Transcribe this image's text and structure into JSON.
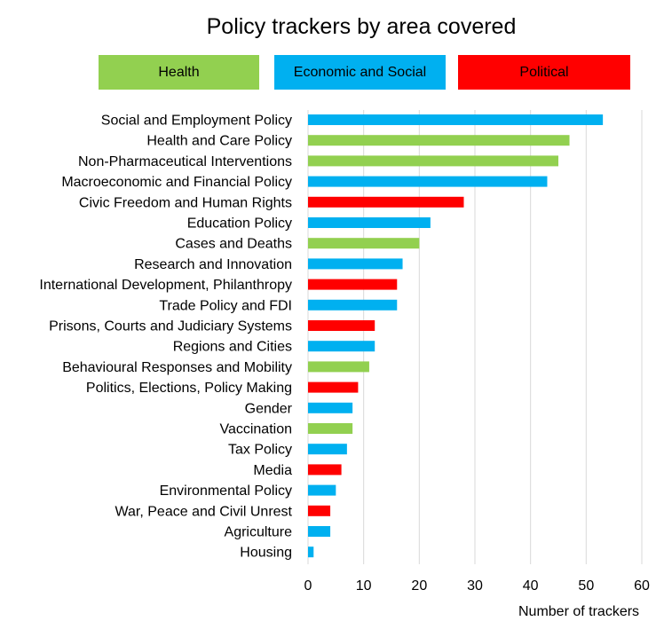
{
  "chart_data": {
    "type": "bar",
    "orientation": "horizontal",
    "title": "Policy trackers by area covered",
    "xlabel": "Number of trackers",
    "ylabel": "",
    "xlim": [
      0,
      60
    ],
    "x_ticks": [
      0,
      10,
      20,
      30,
      40,
      50,
      60
    ],
    "grid": "vertical",
    "legend_position": "top",
    "groups": [
      {
        "name": "Health",
        "color": "#92d050"
      },
      {
        "name": "Economic and Social",
        "color": "#00b0f0"
      },
      {
        "name": "Political",
        "color": "#ff0000"
      }
    ],
    "bars": [
      {
        "category": "Social and Employment Policy",
        "value": 53,
        "group": "Economic and Social"
      },
      {
        "category": "Health and Care Policy",
        "value": 47,
        "group": "Health"
      },
      {
        "category": "Non-Pharmaceutical Interventions",
        "value": 45,
        "group": "Health"
      },
      {
        "category": "Macroeconomic and Financial Policy",
        "value": 43,
        "group": "Economic and Social"
      },
      {
        "category": "Civic Freedom and Human Rights",
        "value": 28,
        "group": "Political"
      },
      {
        "category": "Education Policy",
        "value": 22,
        "group": "Economic and Social"
      },
      {
        "category": "Cases and Deaths",
        "value": 20,
        "group": "Health"
      },
      {
        "category": "Research and Innovation",
        "value": 17,
        "group": "Economic and Social"
      },
      {
        "category": "International Development, Philanthropy",
        "value": 16,
        "group": "Political"
      },
      {
        "category": "Trade Policy and FDI",
        "value": 16,
        "group": "Economic and Social"
      },
      {
        "category": "Prisons, Courts and Judiciary Systems",
        "value": 12,
        "group": "Political"
      },
      {
        "category": "Regions and Cities",
        "value": 12,
        "group": "Economic and Social"
      },
      {
        "category": "Behavioural Responses and Mobility",
        "value": 11,
        "group": "Health"
      },
      {
        "category": "Politics, Elections, Policy Making",
        "value": 9,
        "group": "Political"
      },
      {
        "category": "Gender",
        "value": 8,
        "group": "Economic and Social"
      },
      {
        "category": "Vaccination",
        "value": 8,
        "group": "Health"
      },
      {
        "category": "Tax Policy",
        "value": 7,
        "group": "Economic and Social"
      },
      {
        "category": "Media",
        "value": 6,
        "group": "Political"
      },
      {
        "category": "Environmental Policy",
        "value": 5,
        "group": "Economic and Social"
      },
      {
        "category": "War, Peace and Civil Unrest",
        "value": 4,
        "group": "Political"
      },
      {
        "category": "Agriculture",
        "value": 4,
        "group": "Economic and Social"
      },
      {
        "category": "Housing",
        "value": 1,
        "group": "Economic and Social"
      }
    ]
  }
}
